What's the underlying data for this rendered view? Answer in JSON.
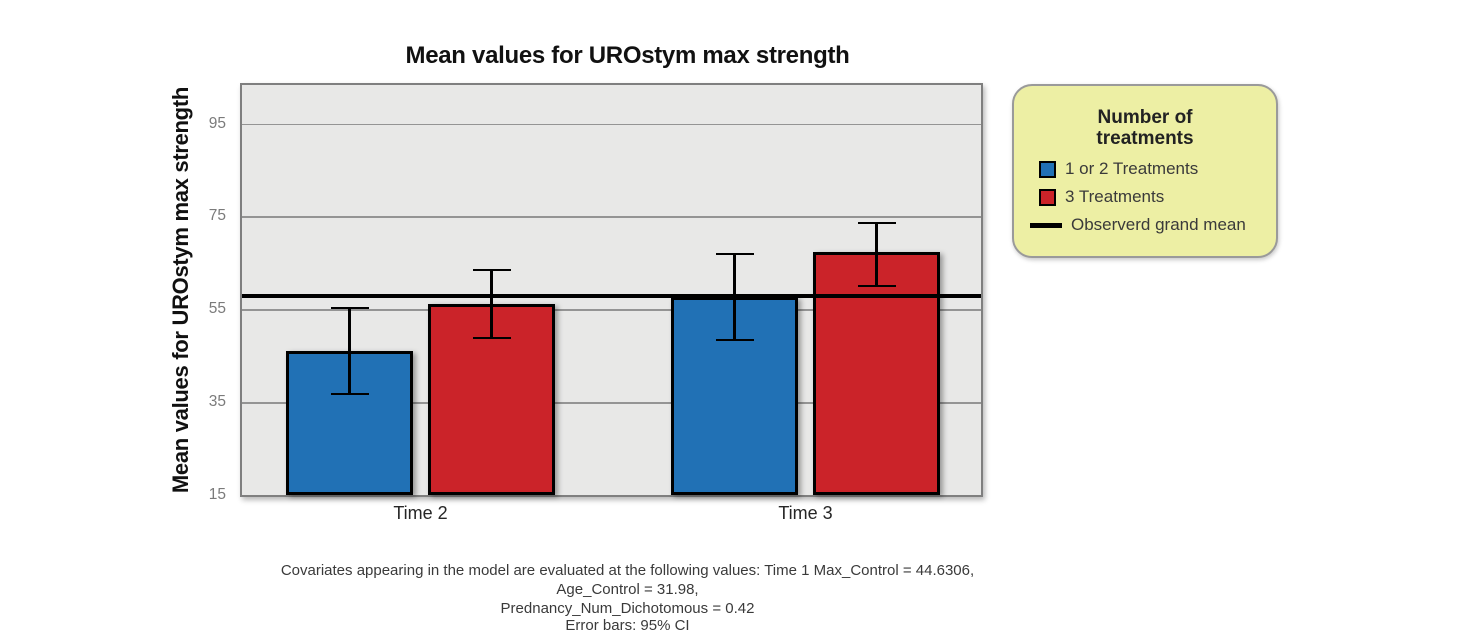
{
  "title": "Mean values for UROstym max strength",
  "y_axis_title": "Mean values for UROstym max strength",
  "footnote": {
    "line1": "Covariates appearing in the model are evaluated at the following values: Time 1 Max_Control = 44.6306, Age_Control = 31.98,",
    "line2": "Prednancy_Num_Dichotomous = 0.42"
  },
  "error_bars_note": "Error bars: 95% CI",
  "legend": {
    "title_line1": "Number of",
    "title_line2": "treatments",
    "background_color": "#edefa4",
    "items": [
      {
        "label": "1 or 2 Treatments",
        "swatch": "square",
        "color": "#2171b5"
      },
      {
        "label": "3 Treatments",
        "swatch": "square",
        "color": "#cb2329"
      },
      {
        "label": "Observerd grand mean",
        "swatch": "line",
        "color": "#000000"
      }
    ]
  },
  "chart_data": {
    "type": "bar",
    "categories": [
      "Time 2",
      "Time 3"
    ],
    "series": [
      {
        "name": "1 or 2 Treatments",
        "color": "#2171b5",
        "values": [
          46,
          57.7
        ],
        "ci_low": [
          36.5,
          48.2
        ],
        "ci_high": [
          55.5,
          67.1
        ]
      },
      {
        "name": "3 Treatments",
        "color": "#cb2329",
        "values": [
          56.2,
          67.3
        ],
        "ci_low": [
          48.5,
          59.7
        ],
        "ci_high": [
          63.7,
          73.9
        ]
      }
    ],
    "grand_mean": 57.8,
    "y_ticks": [
      15,
      35,
      55,
      75,
      95
    ],
    "ylim": [
      15,
      103.3
    ],
    "xlabel": "",
    "ylabel": "Mean values for UROstym max strength",
    "grid": true,
    "legend_position": "right",
    "error_bars": "95% CI"
  }
}
